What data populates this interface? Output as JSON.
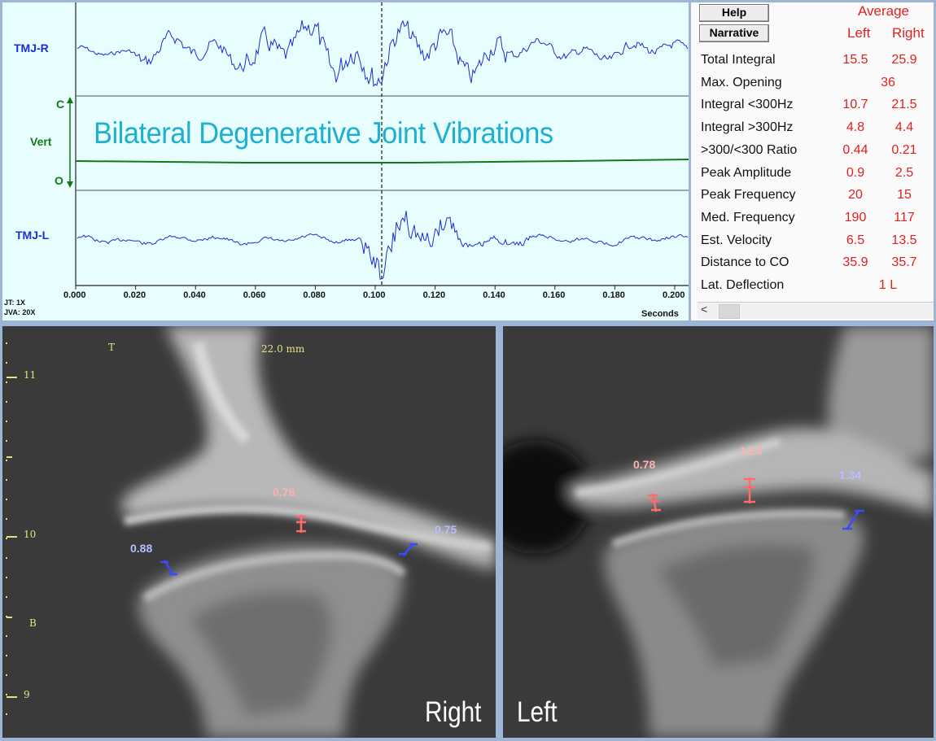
{
  "chart": {
    "overlay_title": "Bilateral Degenerative Joint Vibrations",
    "channels": {
      "tmj_r": "TMJ-R",
      "vert": "Vert",
      "vert_close": "C",
      "vert_open": "O",
      "tmj_l": "TMJ-L"
    },
    "x_ticks": [
      "0.000",
      "0.020",
      "0.040",
      "0.060",
      "0.080",
      "0.100",
      "0.120",
      "0.140",
      "0.160",
      "0.180",
      "0.200"
    ],
    "x_unit": "Seconds",
    "jt": "JT: 1X",
    "jva": "JVA: 20X",
    "colors": {
      "trace": "#1b2fd0",
      "vert_trace": "#137a13",
      "background": "#e8fefe"
    }
  },
  "panel": {
    "help_label": "Help",
    "narrative_label": "Narrative",
    "average_label": "Average",
    "left_label": "Left",
    "right_label": "Right",
    "rows": [
      {
        "label": "Total Integral",
        "left": "15.5",
        "right": "25.9"
      },
      {
        "label": "Max. Opening",
        "center": "36"
      },
      {
        "label": "Integral <300Hz",
        "left": "10.7",
        "right": "21.5"
      },
      {
        "label": "Integral >300Hz",
        "left": "4.8",
        "right": "4.4"
      },
      {
        "label": ">300/<300 Ratio",
        "left": "0.44",
        "right": "0.21"
      },
      {
        "label": "Peak Amplitude",
        "left": "0.9",
        "right": "2.5"
      },
      {
        "label": "Peak Frequency",
        "left": "20",
        "right": "15"
      },
      {
        "label": "Med. Frequency",
        "left": "190",
        "right": "117"
      },
      {
        "label": "Est. Velocity",
        "left": "6.5",
        "right": "13.5"
      },
      {
        "label": "Distance to CO",
        "left": "35.9",
        "right": "35.7"
      },
      {
        "label": "Lat. Deflection",
        "center": "1 L"
      }
    ],
    "scroll_left_icon": "chevron-left-icon"
  },
  "ct_right": {
    "label": "Right",
    "scale_top": "T",
    "scale_bottom": "B",
    "scale_text": "22.0 mm",
    "ruler": [
      "11",
      "10",
      "9"
    ],
    "measurements": [
      {
        "value": "0.78",
        "color": "red"
      },
      {
        "value": "0.88",
        "color": "blue"
      },
      {
        "value": "0.75",
        "color": "blue"
      }
    ]
  },
  "ct_left": {
    "label": "Left",
    "measurements": [
      {
        "value": "0.78",
        "color": "red"
      },
      {
        "value": "1.23",
        "color": "red"
      },
      {
        "value": "1.34",
        "color": "blue"
      }
    ]
  }
}
